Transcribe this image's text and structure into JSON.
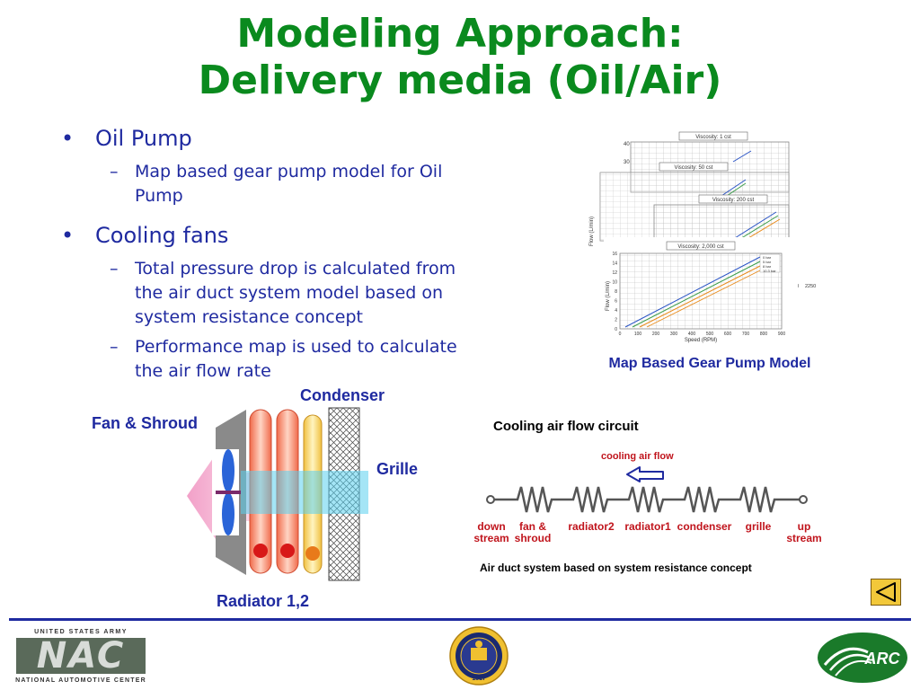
{
  "title": {
    "line1": "Modeling Approach:",
    "line2": "Delivery media (Oil/Air)"
  },
  "bullets": {
    "b1": {
      "marker": "•",
      "text": "Oil Pump"
    },
    "b1_sub1": {
      "marker": "–",
      "line1": "Map based gear pump model for Oil",
      "line2": "Pump"
    },
    "b2": {
      "marker": "•",
      "text": "Cooling fans"
    },
    "b2_sub1": {
      "marker": "–",
      "line1": "Total pressure drop is calculated from",
      "line2": "the air duct system model based on",
      "line3": "system resistance concept"
    },
    "b2_sub2": {
      "marker": "–",
      "line1": "Performance map is used to calculate",
      "line2": "the air flow rate"
    }
  },
  "pump_charts": {
    "caption": "Map Based Gear Pump Model",
    "panel1_title": "Viscosity: 1 cst",
    "panel2_title": "Viscosity: 50 cst",
    "panel3_title": "Viscosity: 200 cst",
    "panel4_title": "Viscosity: 2,000 cst",
    "front_ylabel": "Flow (L/min)",
    "front_xlabel": "Speed (RPM)",
    "front_xticks": [
      "0",
      "100",
      "200",
      "300",
      "400",
      "500",
      "600",
      "700",
      "800",
      "900"
    ],
    "front_yticks": [
      "0",
      "2",
      "4",
      "6",
      "8",
      "10",
      "12",
      "14",
      "16"
    ],
    "back_yticks": [
      "40",
      "30"
    ],
    "legend": [
      "0 bar",
      "5 bar",
      "8 bar",
      "10.3 bar"
    ],
    "stray_ticks": [
      "500",
      "2250"
    ]
  },
  "diagram": {
    "condenser": "Condenser",
    "fan_shroud": "Fan & Shroud",
    "grille": "Grille",
    "radiator": "Radiator 1,2"
  },
  "circuit": {
    "title": "Cooling air flow circuit",
    "flow_label": "cooling air flow",
    "labels": {
      "down1": "down",
      "down2": "stream",
      "fan1": "fan &",
      "fan2": "shroud",
      "rad2": "radiator2",
      "rad1": "radiator1",
      "cond": "condenser",
      "grille": "grille",
      "up1": "up",
      "up2": "stream"
    },
    "caption": "Air duct system based on system resistance concept"
  },
  "footer": {
    "army_top": "UNITED STATES ARMY",
    "nac": "NAC",
    "army_bottom": "NATIONAL AUTOMOTIVE CENTER",
    "arc": "ARC",
    "seal_year": "1817"
  },
  "colors": {
    "title": "#0a8a1e",
    "text": "#1f2aa0",
    "circuit_label": "#c0141c",
    "rule": "#1f2aa0"
  }
}
